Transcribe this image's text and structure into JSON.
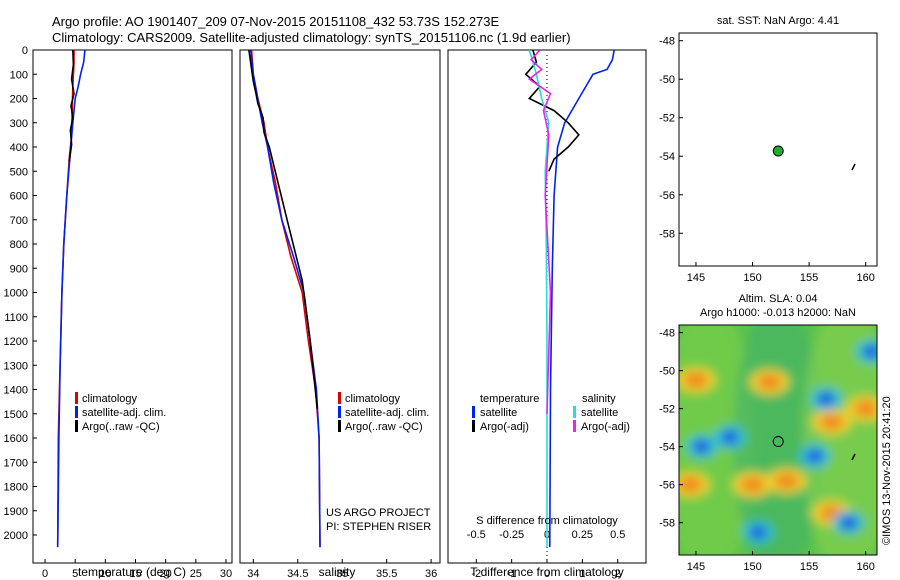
{
  "header": {
    "line1": "Argo profile: AO 1901407_209 07-Nov-2015 20151108_432 53.73S 152.273E",
    "line2": "Climatology: CARS2009. Satellite-adjusted climatology: synTS_20151106.nc (1.9d earlier)"
  },
  "colors": {
    "climatology": "#dd0000",
    "satellite": "#0022ee",
    "argo": "#000000",
    "sal_satellite": "#22dddd",
    "sal_argo": "#ee22ee",
    "marker_green": "#22aa33"
  },
  "depth_axis": {
    "ticks": [
      "0",
      "100",
      "200",
      "300",
      "400",
      "500",
      "600",
      "700",
      "800",
      "900",
      "1000",
      "1100",
      "1200",
      "1300",
      "1400",
      "1500",
      "1600",
      "1700",
      "1800",
      "1900",
      "2000"
    ]
  },
  "panels": {
    "temperature": {
      "xlabel": "temperature (deg C)",
      "legend": [
        "climatology",
        "satellite-adj. clim.",
        "Argo(..raw -QC)"
      ]
    },
    "salinity": {
      "xlabel": "salinity",
      "legend": [
        "climatology",
        "satellite-adj. clim.",
        "Argo(..raw -QC)"
      ],
      "project": "US ARGO PROJECT",
      "pi": "PI: STEPHEN RISER"
    },
    "difference": {
      "legend_temp_title": "temperature",
      "legend_temp_items": [
        "satellite",
        "Argo(-adj)"
      ],
      "legend_sal_title": "salinity",
      "legend_sal_items": [
        "satellite",
        "Argo(-adj)"
      ],
      "s_title": "S difference from climatology",
      "xlabel": "T difference from climatology"
    },
    "map_top": {
      "title": "sat. SST: NaN Argo: 4.41"
    },
    "map_bottom": {
      "title1": "Altim. SLA: 0.04",
      "title2": "Argo h1000: -0.013 h2000: NaN"
    },
    "credit": "©IMOS 13-Nov-2015 20:41:20"
  },
  "chart_data": [
    {
      "type": "line",
      "title": "temperature profile",
      "xlabel": "temperature (deg C)",
      "ylabel": "depth",
      "xlim": [
        -2,
        31
      ],
      "ylim": [
        2050,
        0
      ],
      "xticks": [
        0,
        5,
        10,
        15,
        20,
        25,
        30
      ],
      "xtick_labels": [
        "0",
        "5",
        "10",
        "15",
        "20",
        "25",
        "30"
      ],
      "series": [
        {
          "name": "climatology",
          "color": "#dd0000",
          "x": [
            4.8,
            4.8,
            4.6,
            4.5,
            4.4,
            4.0,
            3.6,
            3.1,
            2.8,
            2.5,
            2.2,
            2.1
          ],
          "y": [
            0,
            50,
            150,
            250,
            350,
            450,
            600,
            800,
            1000,
            1300,
            1600,
            2050
          ]
        },
        {
          "name": "satellite-adj. clim.",
          "color": "#0022ee",
          "x": [
            6.6,
            6.4,
            5.9,
            5.5,
            5.0,
            4.6,
            4.1,
            3.6,
            3.1,
            2.8,
            2.5,
            2.3,
            2.1
          ],
          "y": [
            0,
            50,
            100,
            150,
            200,
            300,
            450,
            600,
            800,
            1000,
            1300,
            1600,
            2050
          ]
        },
        {
          "name": "Argo(..raw -QC)",
          "color": "#000000",
          "x": [
            4.6,
            4.7,
            4.4,
            4.8,
            4.3,
            4.6,
            4.2,
            4.4,
            4.0
          ],
          "y": [
            0,
            60,
            120,
            180,
            230,
            280,
            330,
            390,
            460
          ]
        }
      ]
    },
    {
      "type": "line",
      "title": "salinity profile",
      "xlabel": "salinity",
      "ylabel": "depth",
      "xlim": [
        33.85,
        36.1
      ],
      "ylim": [
        2050,
        0
      ],
      "xticks": [
        34,
        34.5,
        35,
        35.5,
        36
      ],
      "xtick_labels": [
        "34",
        "34.5",
        "35",
        "35.5",
        "36"
      ],
      "series": [
        {
          "name": "climatology",
          "color": "#dd0000",
          "x": [
            33.98,
            34.0,
            34.05,
            34.12,
            34.16,
            34.25,
            34.32,
            34.42,
            34.55,
            34.62,
            34.7,
            34.74,
            34.75
          ],
          "y": [
            0,
            100,
            200,
            300,
            400,
            550,
            700,
            850,
            1000,
            1200,
            1400,
            1600,
            2050
          ]
        },
        {
          "name": "satellite-adj. clim.",
          "color": "#0022ee",
          "x": [
            33.97,
            34.0,
            34.05,
            34.1,
            34.16,
            34.23,
            34.32,
            34.45,
            34.57,
            34.64,
            34.71,
            34.74,
            34.75
          ],
          "y": [
            0,
            100,
            200,
            300,
            400,
            550,
            700,
            850,
            1000,
            1200,
            1400,
            1600,
            2050
          ]
        },
        {
          "name": "Argo(..raw -QC)",
          "color": "#000000",
          "x": [
            33.95,
            33.98,
            34.0,
            34.03,
            34.05,
            34.11,
            34.12,
            34.18,
            34.28,
            34.38,
            34.55,
            34.64,
            34.72
          ],
          "y": [
            0,
            80,
            130,
            180,
            220,
            280,
            340,
            400,
            550,
            700,
            950,
            1200,
            1480
          ]
        }
      ]
    },
    {
      "type": "line",
      "title": "difference from climatology",
      "xlabel": "T difference from climatology",
      "xlim": [
        -2.8,
        2.8
      ],
      "ylim": [
        2050,
        0
      ],
      "xticks": [
        -2,
        -1,
        0,
        1,
        2
      ],
      "xtick_labels": [
        "-2",
        "-1",
        "0",
        "1",
        "2"
      ],
      "s_axis_ticks": [
        -0.5,
        -0.25,
        0,
        0.25,
        0.5
      ],
      "s_axis_tick_labels": [
        "-0.5",
        "-0.25",
        "0",
        "0.25",
        "0.5"
      ],
      "series": [
        {
          "name": "temperature satellite",
          "color": "#0022ee",
          "x": [
            1.9,
            1.85,
            1.7,
            1.3,
            1.1,
            0.9,
            0.7,
            0.5,
            0.3,
            0.2,
            0.15,
            0.1,
            0.08
          ],
          "y": [
            0,
            40,
            80,
            100,
            150,
            200,
            250,
            300,
            400,
            600,
            900,
            1400,
            2050
          ]
        },
        {
          "name": "temperature Argo(-adj)",
          "color": "#000000",
          "x": [
            -0.4,
            -0.3,
            -0.6,
            -0.2,
            -0.5,
            0.2,
            0.6,
            0.9,
            0.6,
            0.2,
            0.05
          ],
          "y": [
            0,
            50,
            100,
            150,
            200,
            250,
            300,
            350,
            400,
            450,
            500
          ]
        },
        {
          "name": "salinity satellite",
          "color": "#22dddd",
          "x": [
            -0.5,
            -0.4,
            -0.3,
            -0.15,
            0.05,
            -0.05,
            -0.02,
            0.0,
            0.0,
            0.0
          ],
          "y": [
            0,
            50,
            100,
            200,
            300,
            500,
            800,
            1200,
            1600,
            2050
          ]
        },
        {
          "name": "salinity Argo(-adj)",
          "color": "#ee22ee",
          "x": [
            -0.2,
            -0.45,
            -0.15,
            -0.5,
            0.1,
            -0.1,
            0.05,
            -0.05,
            0.1,
            0.0
          ],
          "y": [
            0,
            40,
            80,
            120,
            180,
            250,
            350,
            600,
            1000,
            1500
          ]
        }
      ]
    },
    {
      "type": "scatter",
      "title": "sat. SST: NaN Argo: 4.41",
      "xlim": [
        143.5,
        161
      ],
      "ylim": [
        -59.7,
        -47.6
      ],
      "xticks": [
        145,
        150,
        155,
        160
      ],
      "xtick_labels": [
        "145",
        "150",
        "155",
        "160"
      ],
      "yticks": [
        -48,
        -50,
        -52,
        -54,
        -56,
        -58
      ],
      "ytick_labels": [
        "-48",
        "-50",
        "-52",
        "-54",
        "-56",
        "-58"
      ],
      "points": [
        {
          "x": 152.27,
          "y": -53.73,
          "color": "#22aa33"
        }
      ]
    },
    {
      "type": "heatmap",
      "title": "Altim. SLA: 0.04 / Argo h1000: -0.013 h2000: NaN",
      "xlim": [
        143.5,
        161
      ],
      "ylim": [
        -59.7,
        -47.6
      ],
      "xticks": [
        145,
        150,
        155,
        160
      ],
      "xtick_labels": [
        "145",
        "150",
        "155",
        "160"
      ],
      "yticks": [
        -48,
        -50,
        -52,
        -54,
        -56,
        -58
      ],
      "ytick_labels": [
        "-48",
        "-50",
        "-52",
        "-54",
        "-56",
        "-58"
      ],
      "points": [
        {
          "x": 152.27,
          "y": -53.73
        }
      ],
      "features": [
        {
          "kind": "high",
          "x": 145,
          "y": -50.5
        },
        {
          "kind": "high",
          "x": 151.5,
          "y": -50.6
        },
        {
          "kind": "high",
          "x": 157,
          "y": -52.7
        },
        {
          "kind": "high",
          "x": 160,
          "y": -52.0
        },
        {
          "kind": "high",
          "x": 150,
          "y": -56.0
        },
        {
          "kind": "high",
          "x": 153,
          "y": -55.8
        },
        {
          "kind": "high",
          "x": 144.5,
          "y": -56.0
        },
        {
          "kind": "high",
          "x": 157,
          "y": -57.5
        },
        {
          "kind": "low",
          "x": 156.5,
          "y": -51.5
        },
        {
          "kind": "low",
          "x": 155.5,
          "y": -54.5
        },
        {
          "kind": "low",
          "x": 148,
          "y": -53.5
        },
        {
          "kind": "low",
          "x": 145.5,
          "y": -54.0
        },
        {
          "kind": "low",
          "x": 150.5,
          "y": -58.5
        },
        {
          "kind": "low",
          "x": 160.5,
          "y": -49.0
        },
        {
          "kind": "low",
          "x": 158.5,
          "y": -58.0
        }
      ]
    }
  ]
}
